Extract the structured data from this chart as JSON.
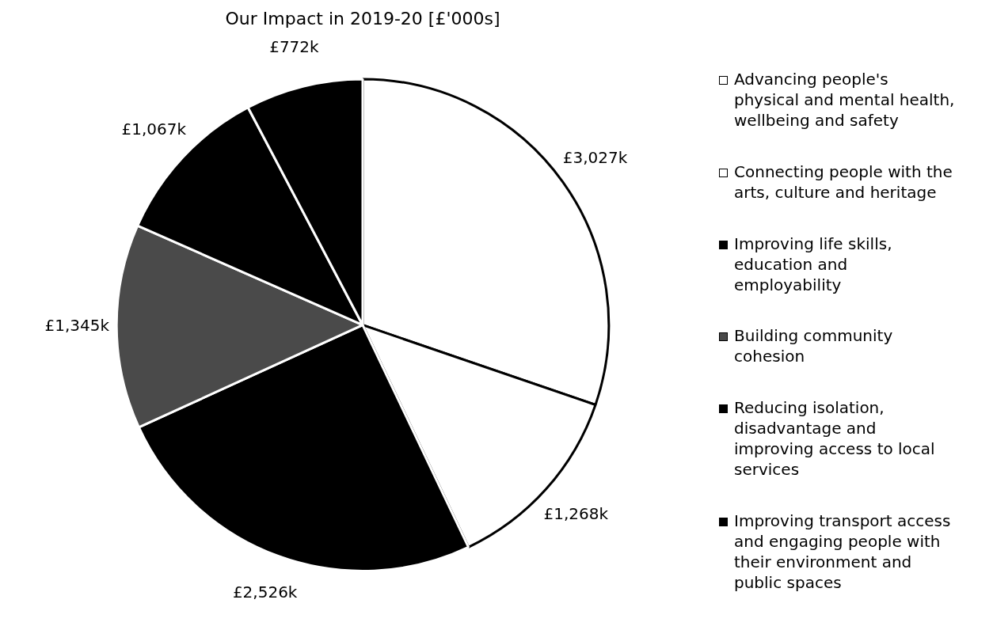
{
  "chart_data": {
    "type": "pie",
    "title": "Our Impact in 2019-20 [£'000s]",
    "categories": [
      "Advancing people's physical and mental health, wellbeing and safety",
      "Connecting people with the arts, culture and heritage",
      "Improving life skills, education and employability",
      "Building community cohesion",
      "Reducing isolation, disadvantage and improving access to local services",
      "Improving transport access and engaging people with their environment and public spaces"
    ],
    "values": [
      3027,
      1268,
      2526,
      1345,
      1067,
      772
    ],
    "value_labels": [
      "£3,027k",
      "£1,268k",
      "£2,526k",
      "£1,345k",
      "£1,067k",
      "£772k"
    ],
    "colors": [
      "#ffffff",
      "#ffffff",
      "#000000",
      "#4a4a4a",
      "#000000",
      "#000000"
    ],
    "legend": "right"
  }
}
